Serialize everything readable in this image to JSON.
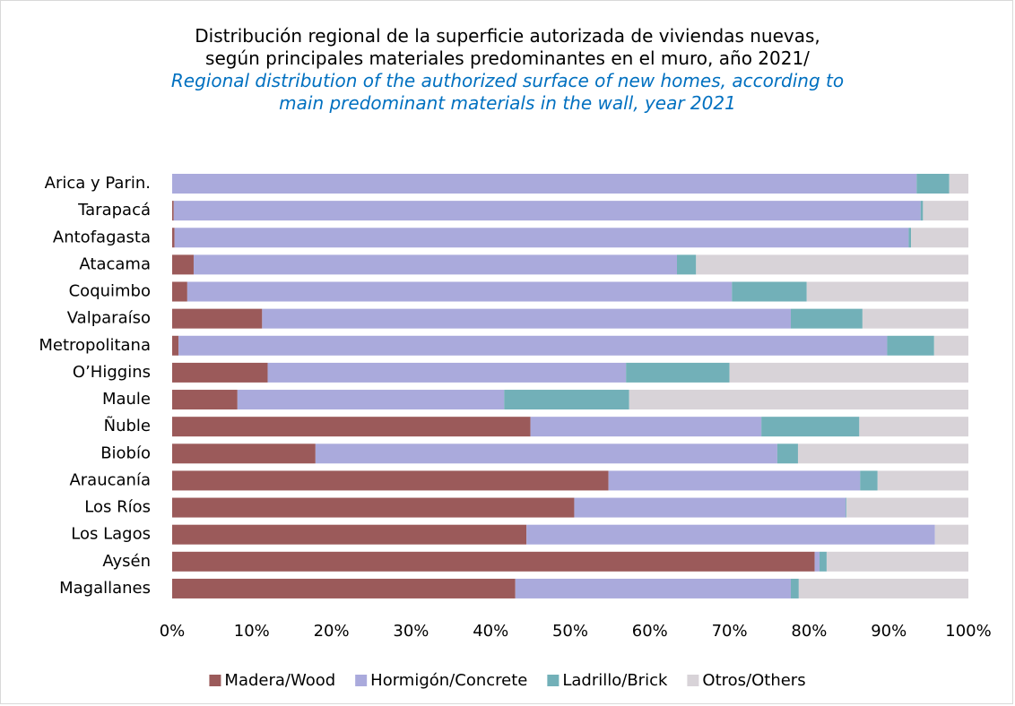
{
  "chart_data": {
    "type": "stacked_barh",
    "title": "Distribución regional de la superficie autorizada de viviendas nuevas, según principales materiales predominantes en el muro, año 2021/",
    "subtitle": "Regional distribution of the authorized surface of new homes, according to main predominant materials in the wall, year 2021",
    "categories": [
      "Arica y Parin.",
      "Tarapacá",
      "Antofagasta",
      "Atacama",
      "Coquimbo",
      "Valparaíso",
      "Metropolitana",
      "O’Higgins",
      "Maule",
      "Ñuble",
      "Biobío",
      "Araucanía",
      "Los Ríos",
      "Los Lagos",
      "Aysén",
      "Magallanes"
    ],
    "series": [
      {
        "name": "Madera/Wood",
        "color": "#9b5a5a",
        "values": [
          0,
          0.2,
          0.3,
          2.7,
          1.9,
          11.3,
          0.8,
          12.0,
          8.2,
          45.0,
          18.0,
          54.8,
          50.5,
          44.5,
          80.7,
          43.1
        ]
      },
      {
        "name": "Hormigón/Concrete",
        "color": "#aaaadc",
        "values": [
          93.5,
          93.8,
          92.2,
          60.7,
          68.4,
          66.4,
          89.0,
          45.0,
          33.5,
          29.0,
          58.0,
          31.6,
          34.1,
          51.3,
          0.6,
          34.6
        ]
      },
      {
        "name": "Ladrillo/Brick",
        "color": "#72b0b8",
        "values": [
          4.1,
          0.3,
          0.3,
          2.4,
          9.4,
          9.0,
          5.9,
          13.0,
          15.7,
          12.3,
          2.6,
          2.2,
          0.1,
          0,
          0.9,
          1.0
        ]
      },
      {
        "name": "Otros/Others",
        "color": "#d8d3d8",
        "values": [
          2.4,
          5.7,
          7.2,
          34.2,
          20.3,
          13.3,
          4.3,
          30.0,
          42.6,
          13.7,
          21.4,
          11.4,
          15.3,
          4.2,
          17.8,
          21.3
        ]
      }
    ],
    "xlim": [
      0,
      100
    ],
    "xticks": [
      {
        "value": 0,
        "label": "0%"
      },
      {
        "value": 10,
        "label": "10%"
      },
      {
        "value": 20,
        "label": "20%"
      },
      {
        "value": 30,
        "label": "30%"
      },
      {
        "value": 40,
        "label": "40%"
      },
      {
        "value": 50,
        "label": "50%"
      },
      {
        "value": 60,
        "label": "60%"
      },
      {
        "value": 70,
        "label": "70%"
      },
      {
        "value": 80,
        "label": "80%"
      },
      {
        "value": 90,
        "label": "90%"
      },
      {
        "value": 100,
        "label": "100%"
      }
    ],
    "legend": "bottom"
  }
}
